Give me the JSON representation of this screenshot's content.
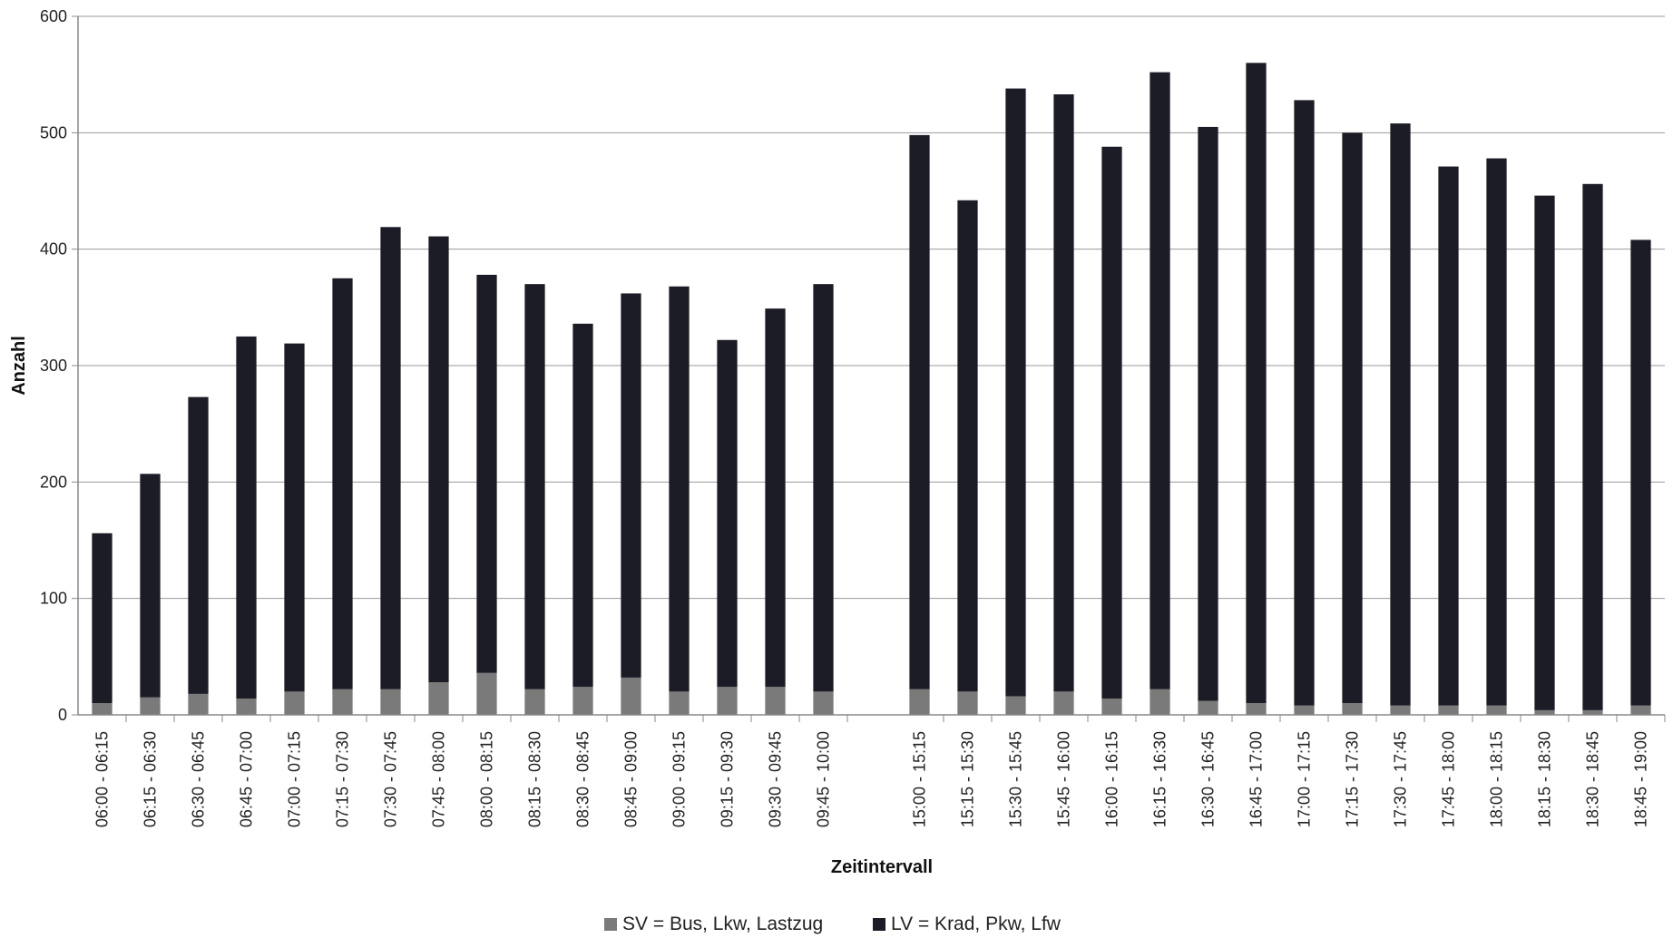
{
  "chart_data": {
    "type": "bar",
    "stacked": true,
    "xlabel": "Zeitintervall",
    "ylabel": "Anzahl",
    "ylim": [
      0,
      600
    ],
    "yticks": [
      0,
      100,
      200,
      300,
      400,
      500,
      600
    ],
    "grid": true,
    "legend_position": "bottom",
    "categories": [
      "06:00 - 06:15",
      "06:15 - 06:30",
      "06:30 - 06:45",
      "06:45 - 07:00",
      "07:00 - 07:15",
      "07:15 - 07:30",
      "07:30 - 07:45",
      "07:45 - 08:00",
      "08:00 - 08:15",
      "08:15 - 08:30",
      "08:30 - 08:45",
      "08:45 - 09:00",
      "09:00 - 09:15",
      "09:15 - 09:30",
      "09:30 - 09:45",
      "09:45 - 10:00",
      "15:00 - 15:15",
      "15:15 - 15:30",
      "15:30 - 15:45",
      "15:45 - 16:00",
      "16:00 - 16:15",
      "16:15 - 16:30",
      "16:30 - 16:45",
      "16:45 - 17:00",
      "17:00 - 17:15",
      "17:15 - 17:30",
      "17:30 - 17:45",
      "17:45 - 18:00",
      "18:00 - 18:15",
      "18:15 - 18:30",
      "18:30 - 18:45",
      "18:45 - 19:00"
    ],
    "series": [
      {
        "name": "SV = Bus, Lkw, Lastzug",
        "color": "#7a7a7a",
        "values": [
          10,
          15,
          18,
          14,
          20,
          22,
          22,
          28,
          36,
          22,
          24,
          32,
          20,
          24,
          24,
          20,
          22,
          20,
          16,
          20,
          14,
          22,
          12,
          10,
          8,
          10,
          8,
          8,
          8,
          4,
          4,
          8
        ]
      },
      {
        "name": "LV = Krad, Pkw, Lfw",
        "color": "#1c1c26",
        "values": [
          146,
          192,
          255,
          311,
          299,
          353,
          397,
          383,
          342,
          348,
          312,
          330,
          348,
          298,
          325,
          350,
          476,
          422,
          522,
          513,
          474,
          530,
          493,
          550,
          520,
          490,
          500,
          463,
          470,
          442,
          452,
          400
        ]
      }
    ],
    "group_gap_after_index": 15
  }
}
